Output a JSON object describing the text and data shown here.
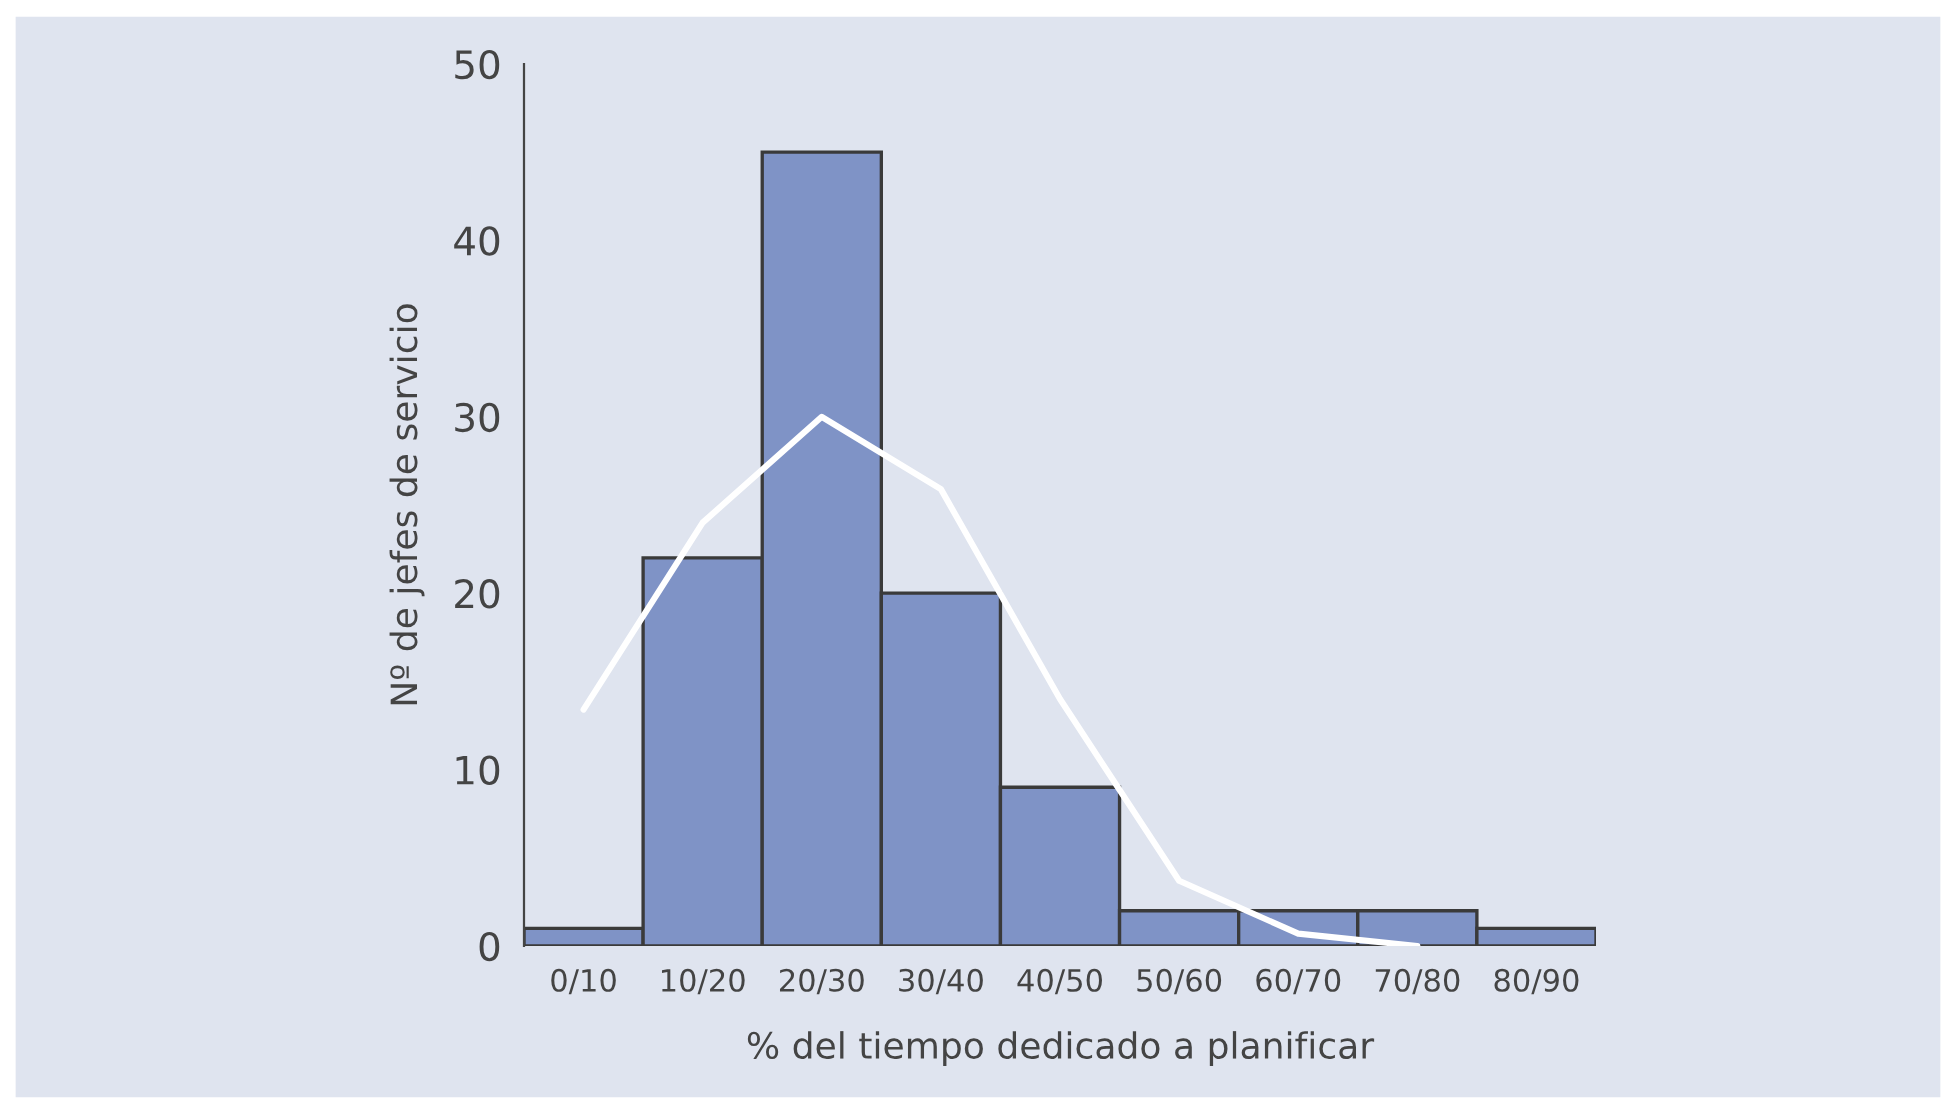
{
  "chart_data": {
    "type": "bar",
    "xlabel": "% del tiempo dedicado a planificar",
    "ylabel": "Nº de jefes de servicio",
    "categories": [
      "0/10",
      "10/20",
      "20/30",
      "30/40",
      "40/50",
      "50/60",
      "60/70",
      "70/80",
      "80/90"
    ],
    "series": [
      {
        "color": "#7f93c6",
        "values": [
          1,
          22,
          45,
          20,
          9,
          2,
          2,
          2,
          1
        ]
      },
      {
        "type": "line",
        "color": "#ffffff",
        "values": [
          13.4,
          24,
          30,
          25.9,
          14,
          3.7,
          0.7,
          0,
          null
        ]
      }
    ],
    "ylim": [
      0,
      50
    ],
    "yticks": [
      0,
      10,
      20,
      30,
      40,
      50
    ]
  }
}
